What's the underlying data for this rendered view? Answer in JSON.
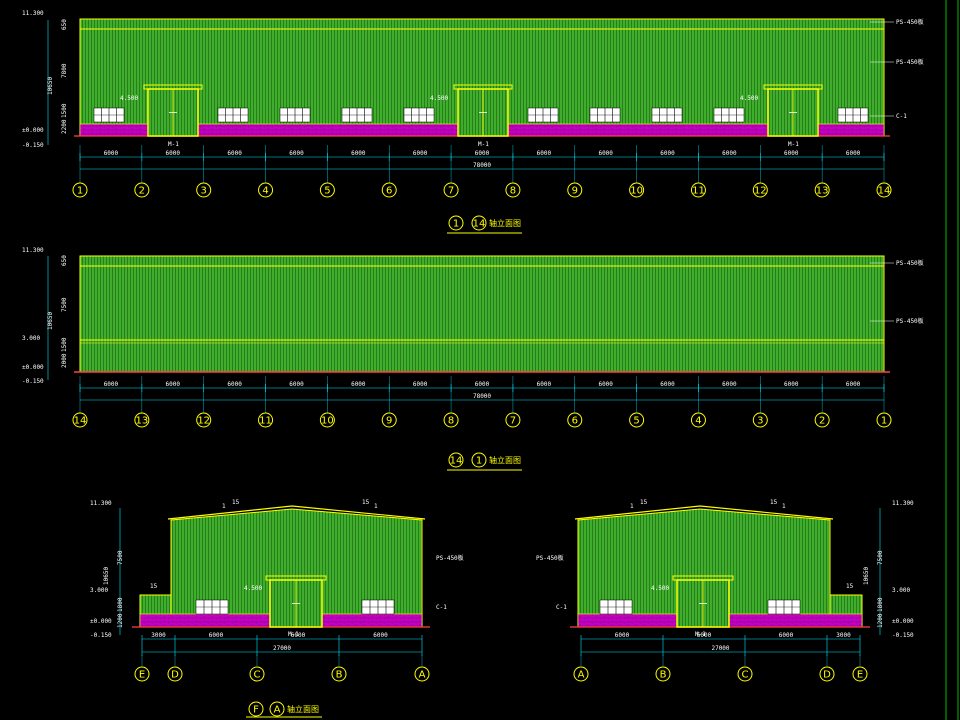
{
  "colors": {
    "background": "#000000",
    "wall": "#3fae2c",
    "frame": "#ffff00",
    "base": "#c400c4",
    "dim": "#00e5ff",
    "text": "#ffffff",
    "border": "#00c000"
  },
  "elev1": {
    "title_prefix_circles": [
      "1",
      "14"
    ],
    "title_suffix": "轴立面图",
    "level_labels": [
      "11.300",
      "±0.000",
      "-0.150"
    ],
    "vertical_dims": [
      "10650",
      "7800",
      "2200",
      "1500",
      "650"
    ],
    "door_label": "M-1",
    "door_level": "4.500",
    "callouts": [
      "PS-450板",
      "PS-450板",
      "C-1"
    ],
    "spans": [
      "6000",
      "6000",
      "6000",
      "6000",
      "6000",
      "6000",
      "6000",
      "6000",
      "6000",
      "6000",
      "6000",
      "6000",
      "6000"
    ],
    "total": "78000",
    "axes": [
      "1",
      "2",
      "3",
      "4",
      "5",
      "6",
      "7",
      "8",
      "9",
      "10",
      "11",
      "12",
      "13",
      "14"
    ]
  },
  "elev2": {
    "title_prefix_circles": [
      "14",
      "1"
    ],
    "title_suffix": "轴立面图",
    "level_labels": [
      "11.300",
      "3.000",
      "±0.000",
      "-0.150"
    ],
    "vertical_dims": [
      "10650",
      "7500",
      "2000",
      "1500",
      "650"
    ],
    "callouts": [
      "PS-450板",
      "PS-450板"
    ],
    "spans": [
      "6000",
      "6000",
      "6000",
      "6000",
      "6000",
      "6000",
      "6000",
      "6000",
      "6000",
      "6000",
      "6000",
      "6000",
      "6000"
    ],
    "total": "78000",
    "axes": [
      "14",
      "13",
      "12",
      "11",
      "10",
      "9",
      "8",
      "7",
      "6",
      "5",
      "4",
      "3",
      "2",
      "1"
    ]
  },
  "elev3": {
    "title_prefix_circles": [
      "F",
      "A"
    ],
    "title_suffix": "轴立面图",
    "level_labels": [
      "11.300",
      "3.000",
      "±0.000",
      "-0.150"
    ],
    "vertical_dims": [
      "10650",
      "7500",
      "1800",
      "1200"
    ],
    "slope": [
      "1",
      "15",
      "15",
      "1",
      "15"
    ],
    "door_label": "M-1",
    "door_level": "4.500",
    "callouts": [
      "PS-450板",
      "C-1"
    ],
    "spans": [
      "3000",
      "6000",
      "6000",
      "6000"
    ],
    "total": "27000",
    "axes": [
      "E",
      "D",
      "C",
      "B",
      "A"
    ]
  },
  "elev4": {
    "level_labels": [
      "11.300",
      "3.000",
      "±0.000",
      "-0.150"
    ],
    "vertical_dims": [
      "10650",
      "7500",
      "1800",
      "1200"
    ],
    "slope": [
      "1",
      "15",
      "15",
      "1",
      "15"
    ],
    "door_label": "M-1",
    "door_level": "4.500",
    "callouts": [
      "PS-450板",
      "C-1"
    ],
    "spans": [
      "6000",
      "6000",
      "6000",
      "3000"
    ],
    "total": "27000",
    "axes": [
      "A",
      "B",
      "C",
      "D",
      "E"
    ]
  }
}
